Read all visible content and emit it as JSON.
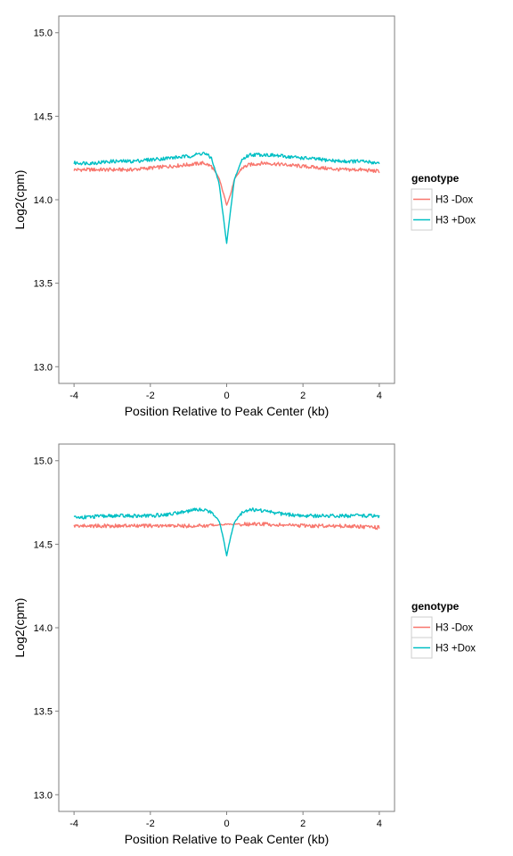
{
  "chart_data": [
    {
      "type": "line",
      "title": "",
      "xlabel": "Position Relative to Peak Center (kb)",
      "ylabel": "Log2(cpm)",
      "xlim": [
        -4.4,
        4.4
      ],
      "ylim": [
        12.9,
        15.1
      ],
      "xticks": [
        -4,
        -2,
        0,
        2,
        4
      ],
      "xtick_labels": [
        "-4",
        "-2",
        "0",
        "2",
        "4"
      ],
      "yticks": [
        13.0,
        13.5,
        14.0,
        14.5,
        15.0
      ],
      "ytick_labels": [
        "13.0",
        "13.5",
        "14.0",
        "14.5",
        "15.0"
      ],
      "grid": false,
      "legend": {
        "title": "genotype",
        "placement": "right"
      },
      "series": [
        {
          "name": "H3 -Dox",
          "color": "#F8766D",
          "x": [
            -4,
            -3.5,
            -3,
            -2.5,
            -2,
            -1.5,
            -1,
            -0.6,
            -0.4,
            -0.2,
            -0.1,
            0,
            0.1,
            0.2,
            0.4,
            0.6,
            1,
            1.5,
            2,
            2.5,
            3,
            3.5,
            4
          ],
          "y": [
            14.18,
            14.18,
            14.18,
            14.18,
            14.19,
            14.2,
            14.21,
            14.22,
            14.2,
            14.13,
            14.05,
            13.97,
            14.03,
            14.12,
            14.19,
            14.21,
            14.22,
            14.21,
            14.2,
            14.19,
            14.18,
            14.18,
            14.17
          ]
        },
        {
          "name": "H3 +Dox",
          "color": "#00BFC4",
          "x": [
            -4,
            -3.5,
            -3,
            -2.5,
            -2,
            -1.5,
            -1,
            -0.6,
            -0.4,
            -0.2,
            -0.1,
            0,
            0.1,
            0.2,
            0.4,
            0.6,
            1,
            1.5,
            2,
            2.5,
            3,
            3.5,
            4
          ],
          "y": [
            14.22,
            14.22,
            14.23,
            14.23,
            14.24,
            14.25,
            14.26,
            14.28,
            14.25,
            14.1,
            13.92,
            13.74,
            13.93,
            14.12,
            14.24,
            14.27,
            14.27,
            14.26,
            14.25,
            14.24,
            14.23,
            14.23,
            14.22
          ]
        }
      ]
    },
    {
      "type": "line",
      "title": "",
      "xlabel": "Position Relative to Peak Center (kb)",
      "ylabel": "Log2(cpm)",
      "xlim": [
        -4.4,
        4.4
      ],
      "ylim": [
        12.9,
        15.1
      ],
      "xticks": [
        -4,
        -2,
        0,
        2,
        4
      ],
      "xtick_labels": [
        "-4",
        "-2",
        "0",
        "2",
        "4"
      ],
      "yticks": [
        13.0,
        13.5,
        14.0,
        14.5,
        15.0
      ],
      "ytick_labels": [
        "13.0",
        "13.5",
        "14.0",
        "14.5",
        "15.0"
      ],
      "grid": false,
      "legend": {
        "title": "genotype",
        "placement": "right"
      },
      "series": [
        {
          "name": "H3 -Dox",
          "color": "#F8766D",
          "x": [
            -4,
            -3,
            -2,
            -1,
            -0.5,
            0,
            0.5,
            1,
            2,
            3,
            4
          ],
          "y": [
            14.61,
            14.61,
            14.61,
            14.61,
            14.61,
            14.62,
            14.62,
            14.62,
            14.61,
            14.61,
            14.6
          ]
        },
        {
          "name": "H3 +Dox",
          "color": "#00BFC4",
          "x": [
            -4,
            -3,
            -2,
            -1.5,
            -1,
            -0.6,
            -0.4,
            -0.2,
            -0.1,
            0,
            0.1,
            0.2,
            0.4,
            0.6,
            1,
            1.5,
            2,
            3,
            4
          ],
          "y": [
            14.66,
            14.67,
            14.67,
            14.68,
            14.7,
            14.71,
            14.69,
            14.64,
            14.55,
            14.43,
            14.54,
            14.63,
            14.69,
            14.71,
            14.7,
            14.68,
            14.67,
            14.67,
            14.67
          ]
        }
      ]
    }
  ]
}
